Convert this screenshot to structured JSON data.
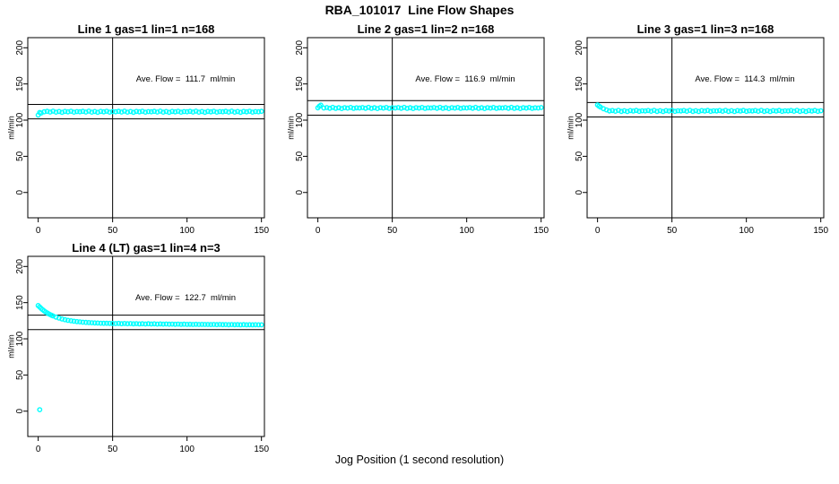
{
  "page": {
    "title": "RBA_101017  Line Flow Shapes",
    "xlabel": "Jog Position (1 second resolution)",
    "background": "#FFFFFF",
    "axis_color": "#000000",
    "marker_color": "#00FFFF"
  },
  "chart_data": [
    {
      "type": "scatter",
      "title": "Line 1 gas=1 lin=1 n=168",
      "annotation": "Ave. Flow =  111.7  ml/min",
      "ave_flow": 111.7,
      "ylabel": "ml/min",
      "marker_color": "#00FFFF",
      "axis_color": "#000000",
      "grid": false,
      "x_ticks": [
        0,
        50,
        100,
        150
      ],
      "y_ticks": [
        0,
        50,
        100,
        150,
        200
      ],
      "xlim": [
        -7,
        152
      ],
      "ylim": [
        -35,
        214
      ],
      "vline_x": 50,
      "hlines": [
        121.7,
        101.7
      ],
      "x_start": 0,
      "x_step": 2,
      "y_values": [
        107.0,
        109.8,
        111.6,
        112.2,
        111.2,
        112.4,
        111.0,
        111.9,
        110.8,
        112.1,
        111.4,
        112.3,
        111.1,
        111.8,
        111.6,
        112.2,
        111.2,
        112.4,
        111.0,
        111.9,
        110.8,
        112.1,
        111.4,
        112.3,
        111.1,
        111.8,
        111.6,
        112.2,
        111.2,
        112.4,
        111.0,
        111.9,
        110.8,
        112.1,
        111.4,
        112.3,
        111.1,
        111.8,
        111.6,
        112.2,
        111.2,
        112.4,
        111.0,
        111.9,
        110.8,
        112.1,
        111.4,
        112.3,
        111.1,
        111.8,
        111.6,
        112.2,
        111.2,
        112.4,
        111.0,
        111.9,
        110.8,
        112.1,
        111.4,
        112.3,
        111.1,
        111.8,
        111.6,
        112.2,
        111.2,
        112.4,
        111.0,
        111.9,
        110.8,
        112.1,
        111.4,
        112.3,
        111.1,
        111.8,
        111.6,
        112.2
      ],
      "extra_points": [
        [
          1,
          110.5
        ]
      ]
    },
    {
      "type": "scatter",
      "title": "Line 2 gas=1 lin=2 n=168",
      "annotation": "Ave. Flow =  116.9  ml/min",
      "ave_flow": 116.9,
      "ylabel": "ml/min",
      "marker_color": "#00FFFF",
      "axis_color": "#000000",
      "grid": false,
      "x_ticks": [
        0,
        50,
        100,
        150
      ],
      "y_ticks": [
        0,
        50,
        100,
        150,
        200
      ],
      "xlim": [
        -7,
        152
      ],
      "ylim": [
        -35,
        214
      ],
      "vline_x": 50,
      "hlines": [
        126.9,
        106.9
      ],
      "x_start": 0,
      "x_step": 2,
      "y_values": [
        117.0,
        120.7,
        116.8,
        117.4,
        116.4,
        117.6,
        116.2,
        117.1,
        116.0,
        117.3,
        116.6,
        117.5,
        116.3,
        117.0,
        116.8,
        117.4,
        116.4,
        117.6,
        116.2,
        117.1,
        116.0,
        117.3,
        116.6,
        117.5,
        116.3,
        117.0,
        116.8,
        117.4,
        116.4,
        117.6,
        116.2,
        117.1,
        116.0,
        117.3,
        116.6,
        117.5,
        116.3,
        117.0,
        116.8,
        117.4,
        116.4,
        117.6,
        116.2,
        117.1,
        116.0,
        117.3,
        116.6,
        117.5,
        116.3,
        117.0,
        116.8,
        117.4,
        116.4,
        117.6,
        116.2,
        117.1,
        116.0,
        117.3,
        116.6,
        117.5,
        116.3,
        117.0,
        116.8,
        117.4,
        116.4,
        117.6,
        116.2,
        117.1,
        116.0,
        117.3,
        116.6,
        117.5,
        116.3,
        117.0,
        116.8,
        117.4
      ],
      "extra_points": [
        [
          1,
          119.2
        ]
      ]
    },
    {
      "type": "scatter",
      "title": "Line 3 gas=1 lin=3 n=168",
      "annotation": "Ave. Flow =  114.3  ml/min",
      "ave_flow": 114.3,
      "ylabel": "ml/min",
      "marker_color": "#00FFFF",
      "axis_color": "#000000",
      "grid": false,
      "x_ticks": [
        0,
        50,
        100,
        150
      ],
      "y_ticks": [
        0,
        50,
        100,
        150,
        200
      ],
      "xlim": [
        -7,
        152
      ],
      "ylim": [
        -35,
        214
      ],
      "vline_x": 50,
      "hlines": [
        124.3,
        104.3
      ],
      "x_start": 0,
      "x_step": 2,
      "y_values": [
        121.0,
        118.0,
        115.8,
        114.2,
        112.7,
        113.3,
        112.3,
        113.5,
        112.1,
        113.0,
        111.9,
        113.2,
        112.5,
        113.4,
        112.2,
        112.9,
        112.7,
        113.3,
        112.3,
        113.5,
        112.1,
        113.0,
        111.9,
        113.2,
        112.5,
        113.4,
        112.2,
        112.9,
        112.7,
        113.3,
        112.3,
        113.5,
        112.1,
        113.0,
        111.9,
        113.2,
        112.5,
        113.4,
        112.2,
        112.9,
        112.7,
        113.3,
        112.3,
        113.5,
        112.1,
        113.0,
        111.9,
        113.2,
        112.5,
        113.4,
        112.2,
        112.9,
        112.7,
        113.3,
        112.3,
        113.5,
        112.1,
        113.0,
        111.9,
        113.2,
        112.5,
        113.4,
        112.2,
        112.9,
        112.7,
        113.3,
        112.3,
        113.5,
        112.1,
        113.0,
        111.9,
        113.2,
        112.5,
        113.4,
        112.2,
        112.9
      ],
      "extra_points": [
        [
          1,
          119.3
        ]
      ]
    },
    {
      "type": "scatter",
      "title": "Line 4 (LT) gas=1 lin=4 n=3",
      "annotation": "Ave. Flow =  122.7  ml/min",
      "ave_flow": 122.7,
      "ylabel": "ml/min",
      "marker_color": "#00FFFF",
      "axis_color": "#000000",
      "grid": false,
      "x_ticks": [
        0,
        50,
        100,
        150
      ],
      "y_ticks": [
        0,
        50,
        100,
        150,
        200
      ],
      "xlim": [
        -7,
        152
      ],
      "ylim": [
        -35,
        214
      ],
      "vline_x": 50,
      "hlines": [
        132.7,
        112.7
      ],
      "x_start": 0,
      "x_step": 2,
      "y_values": [
        146.0,
        142.0,
        138.6,
        135.8,
        133.5,
        131.6,
        130.0,
        128.6,
        127.4,
        126.4,
        125.6,
        124.9,
        124.3,
        123.8,
        123.4,
        123.0,
        122.7,
        122.4,
        122.2,
        122.0,
        121.8,
        121.6,
        121.5,
        121.4,
        121.3,
        121.2,
        121.1,
        121.3,
        120.9,
        121.2,
        120.8,
        121.1,
        120.7,
        121.0,
        120.6,
        120.9,
        120.5,
        120.8,
        120.5,
        120.7,
        120.4,
        120.6,
        120.3,
        120.5,
        120.2,
        120.4,
        120.1,
        120.3,
        120.0,
        120.2,
        120.0,
        120.1,
        119.9,
        120.1,
        119.8,
        120.0,
        119.8,
        119.9,
        119.7,
        119.9,
        119.6,
        119.8,
        119.6,
        119.7,
        119.5,
        119.7,
        119.5,
        119.6,
        119.4,
        119.6,
        119.4,
        119.5,
        119.3,
        119.5,
        119.3,
        119.4
      ],
      "extra_points": [
        [
          1,
          2.0
        ],
        [
          1,
          144.0
        ],
        [
          3,
          140.2
        ],
        [
          5,
          137.1
        ],
        [
          7,
          134.6
        ],
        [
          9,
          132.5
        ]
      ]
    }
  ]
}
